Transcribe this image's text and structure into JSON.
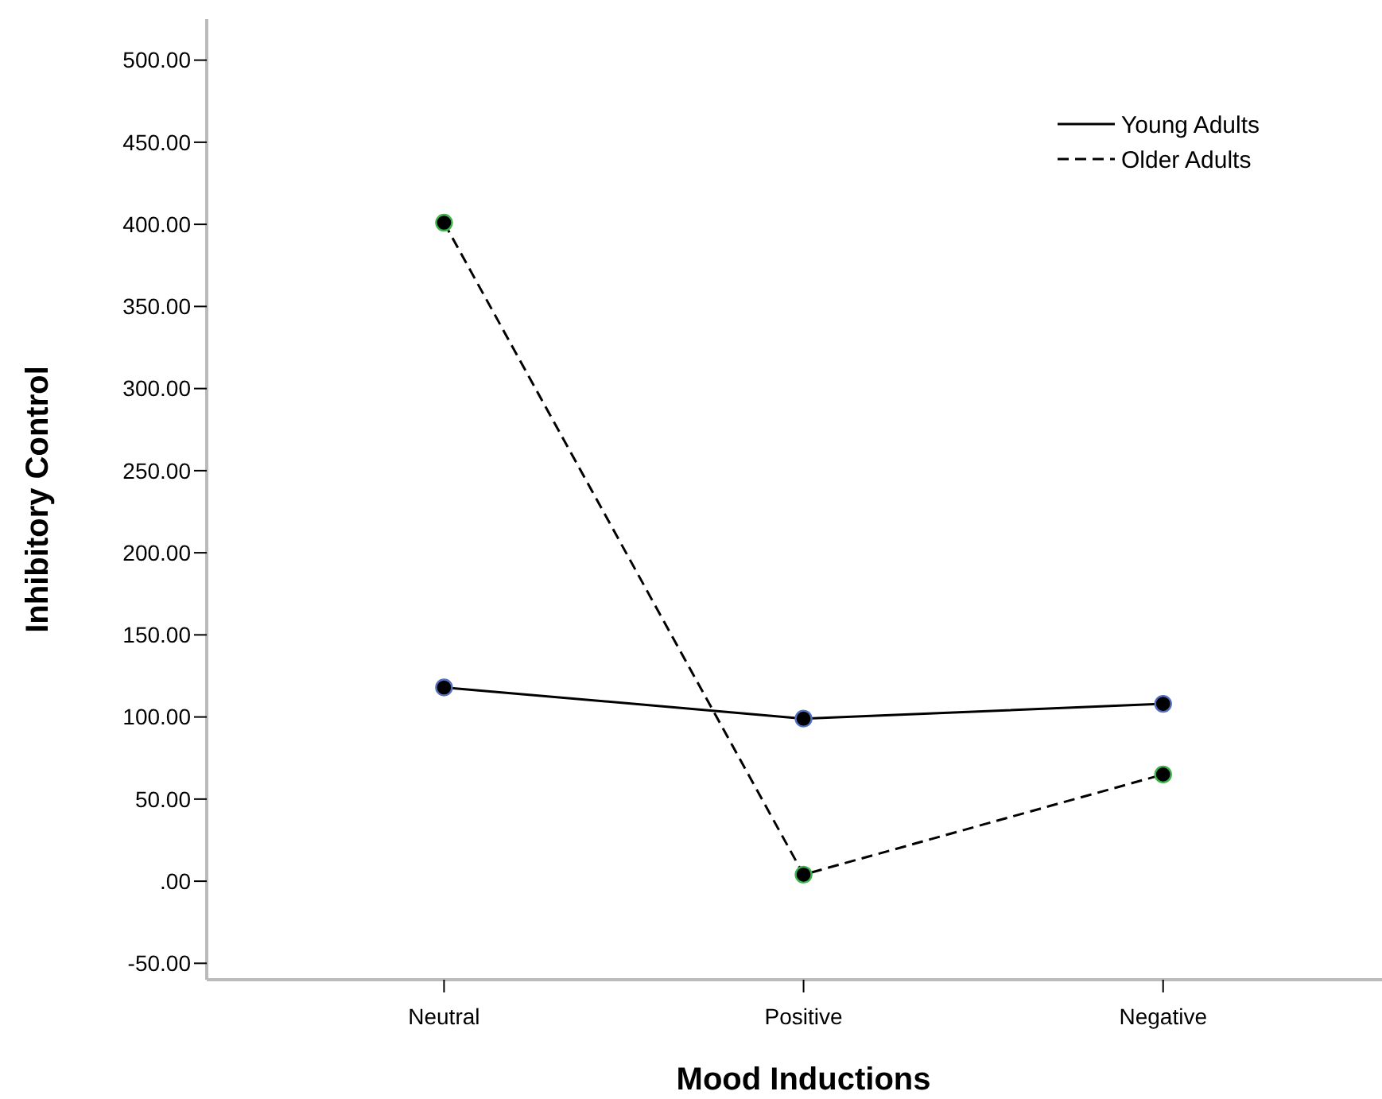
{
  "chart_data": {
    "type": "line",
    "xlabel": "Mood Inductions",
    "ylabel": "Inhibitory Control",
    "categories": [
      "Neutral",
      "Positive",
      "Negative"
    ],
    "series": [
      {
        "name": "Young Adults",
        "color": "#000000",
        "line_style": "solid",
        "values": [
          118,
          99,
          108
        ]
      },
      {
        "name": "Older Adults",
        "color": "#000000",
        "line_style": "dashed",
        "values": [
          401,
          4,
          65
        ]
      }
    ],
    "ylim": [
      -60,
      525
    ],
    "yticks": [
      {
        "value": -50,
        "label": "-50.00"
      },
      {
        "value": 0,
        "label": ".00"
      },
      {
        "value": 50,
        "label": "50.00"
      },
      {
        "value": 100,
        "label": "100.00"
      },
      {
        "value": 150,
        "label": "150.00"
      },
      {
        "value": 200,
        "label": "200.00"
      },
      {
        "value": 250,
        "label": "250.00"
      },
      {
        "value": 300,
        "label": "300.00"
      },
      {
        "value": 350,
        "label": "350.00"
      },
      {
        "value": 400,
        "label": "400.00"
      },
      {
        "value": 450,
        "label": "450.00"
      },
      {
        "value": 500,
        "label": "500.00"
      }
    ],
    "marker": "circle",
    "grid": false,
    "legend": "top right"
  }
}
